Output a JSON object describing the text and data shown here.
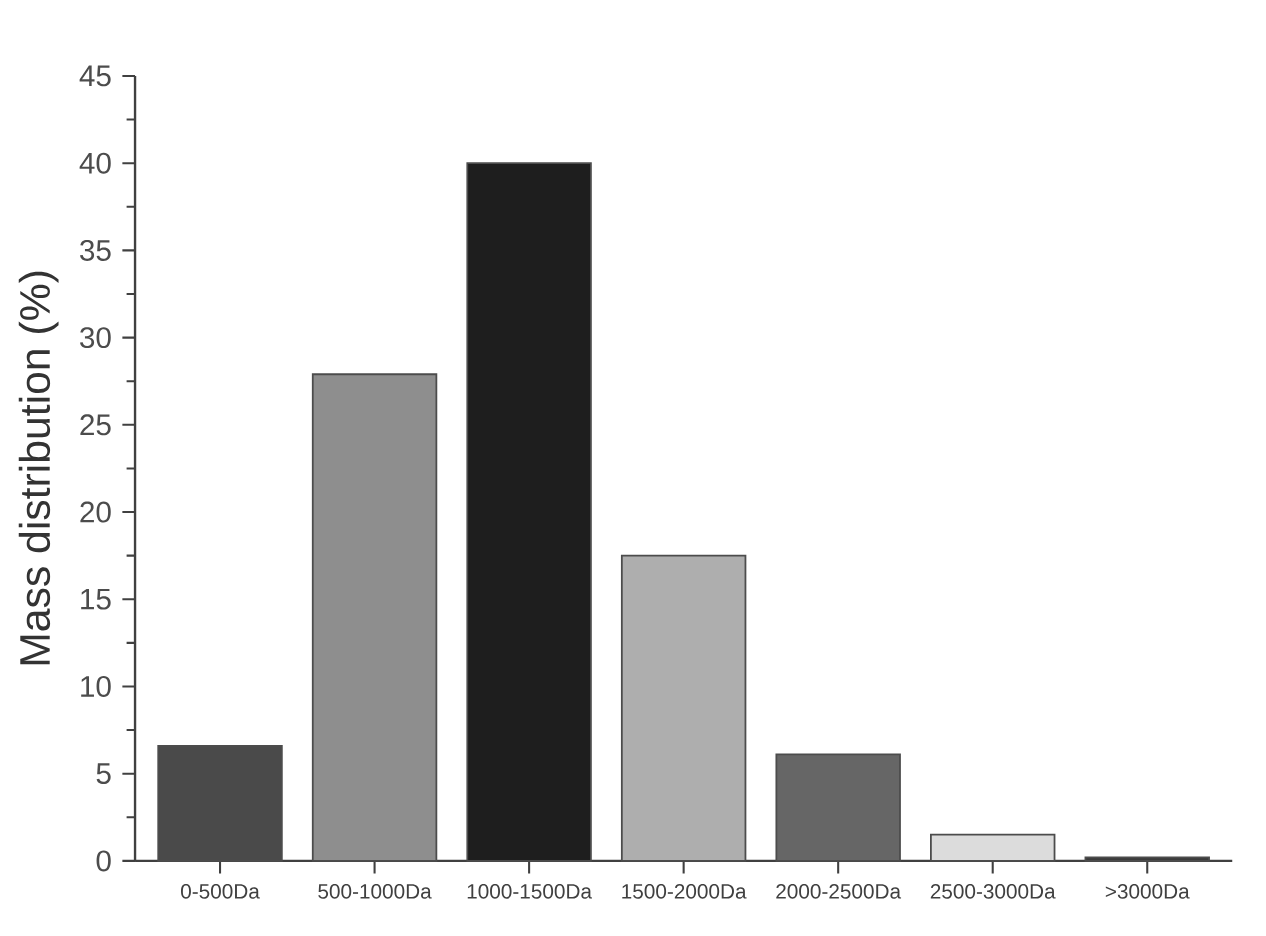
{
  "chart_data": {
    "type": "bar",
    "ylabel": "Mass distribution (%)",
    "categories": [
      "0-500Da",
      "500-1000Da",
      "1000-1500Da",
      "1500-2000Da",
      "2000-2500Da",
      "2500-3000Da",
      ">3000Da"
    ],
    "values": [
      6.6,
      27.9,
      40.0,
      17.5,
      6.1,
      1.5,
      0.2
    ],
    "colors": [
      "#4a4a4a",
      "#8e8e8e",
      "#1e1e1e",
      "#aeaeae",
      "#666666",
      "#dcdcdc",
      "#3a3a3a"
    ],
    "ylim": [
      0,
      45
    ],
    "yticks": [
      0,
      5,
      10,
      15,
      20,
      25,
      30,
      35,
      40,
      45
    ],
    "grid": false
  }
}
